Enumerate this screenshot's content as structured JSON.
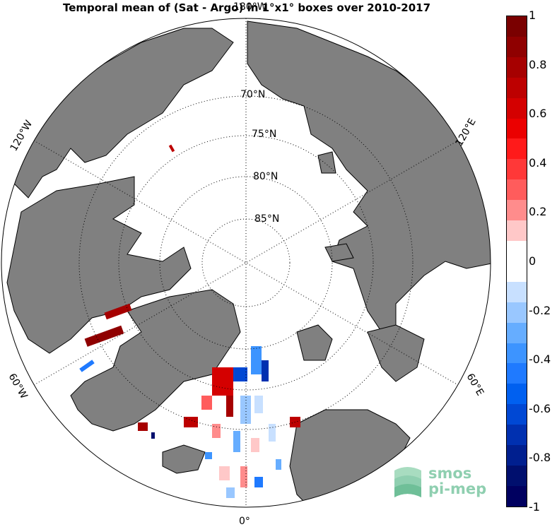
{
  "title": "Temporal mean of (Sat - Argo) in 1°x1° boxes over 2010-2017",
  "longitude_labels": {
    "top": "180°W",
    "upper_left": "120°W",
    "upper_right": "120°E",
    "lower_left": "60°W",
    "lower_right": "60°E",
    "bottom": "0°"
  },
  "latitude_labels": [
    "70°N",
    "75°N",
    "80°N",
    "85°N"
  ],
  "colorbar": {
    "ticks": [
      "1",
      "0.8",
      "0.6",
      "0.4",
      "0.2",
      "0",
      "-0.2",
      "-0.4",
      "-0.6",
      "-0.8",
      "-1"
    ],
    "colors": [
      "#7a0000",
      "#8f0000",
      "#a60000",
      "#bd0000",
      "#d40000",
      "#eb0000",
      "#ff1a1a",
      "#ff3838",
      "#ff5c5c",
      "#ff8c8c",
      "#ffc8c8",
      "#ffffff",
      "#ffffff",
      "#c8e0ff",
      "#99c7ff",
      "#66adff",
      "#3d94ff",
      "#1f7aff",
      "#0060f0",
      "#0048d4",
      "#0030b0",
      "#001f8f",
      "#000f6e",
      "#000060"
    ]
  },
  "colors": {
    "land": "#808080",
    "ocean": "#ffffff",
    "positive": "#c0000a",
    "negative": "#1a6ee6"
  },
  "logo": {
    "line1": "smos",
    "line2": "pi-mep"
  }
}
